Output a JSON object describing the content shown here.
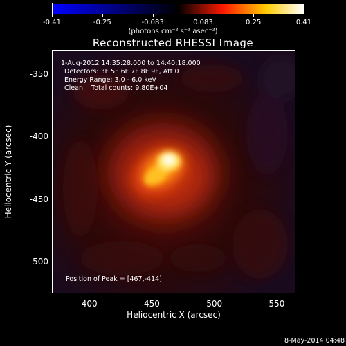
{
  "colorbar": {
    "tick_labels": [
      "-0.41",
      "-0.25",
      "-0.083",
      "0.083",
      "0.25",
      "0.41"
    ],
    "units": "(photons cm⁻² s⁻¹ asec⁻²)",
    "min": -0.41,
    "max": 0.41,
    "colors": [
      "#0000ff",
      "#000000",
      "#ff0000",
      "#ffff00",
      "#ffffff"
    ]
  },
  "title": "Reconstructed RHESSI Image",
  "info": {
    "time_range": "1-Aug-2012 14:35:28.000 to 14:40:18.000",
    "detectors": "Detectors: 3F 5F 6F 7F 8F 9F, Att 0",
    "energy": "Energy Range: 3.0 - 6.0 keV",
    "clean": "Clean    Total counts: 9.80E+04",
    "peak": "Position of Peak = [467,-414]"
  },
  "axes": {
    "x_title": "Heliocentric X (arcsec)",
    "y_title": "Heliocentric Y (arcsec)",
    "x_ticks": [
      "400",
      "450",
      "500",
      "550"
    ],
    "y_ticks": [
      "-350",
      "-400",
      "-450",
      "-500"
    ],
    "x_range": [
      370,
      565
    ],
    "y_range": [
      -525,
      -330
    ]
  },
  "footer": "8-May-2014 04:48"
}
